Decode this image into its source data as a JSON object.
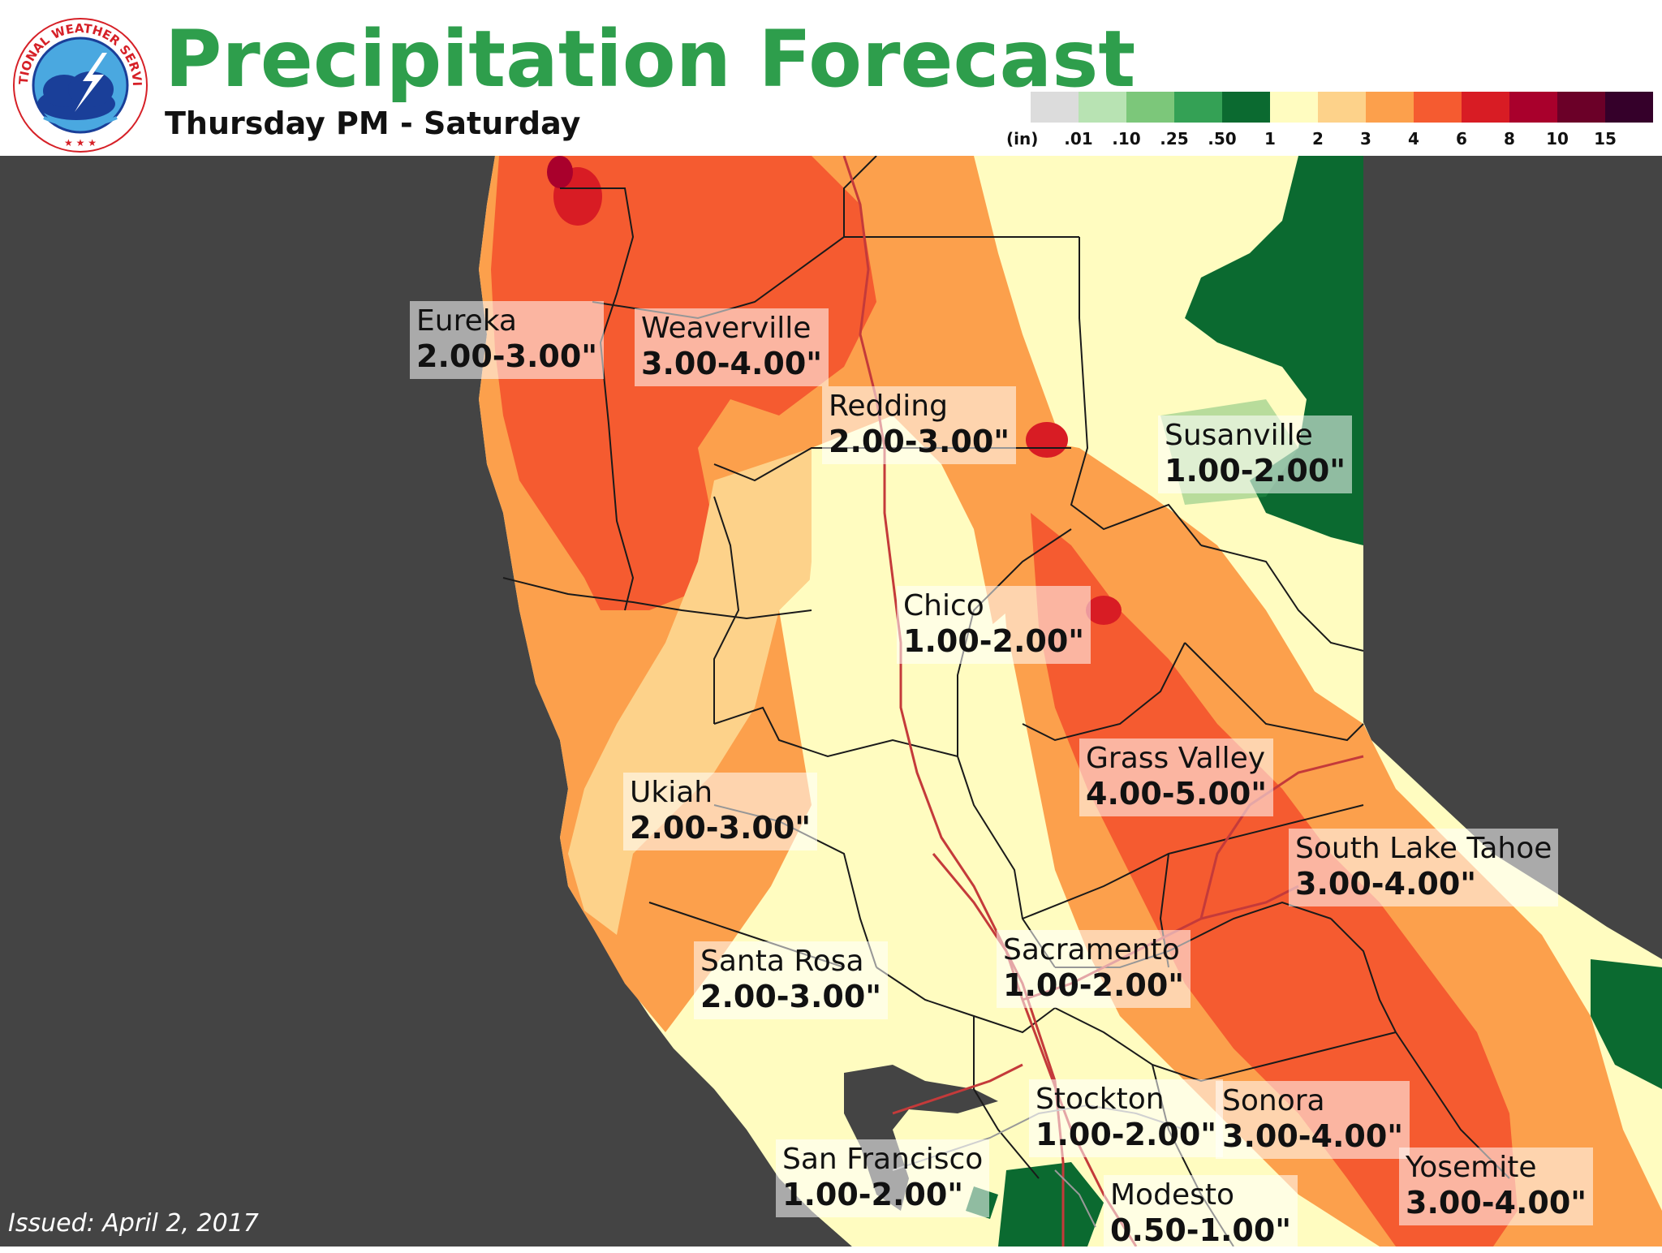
{
  "header": {
    "title": "Precipitation Forecast",
    "subtitle": "Thursday PM - Saturday"
  },
  "logo": {
    "text": "NATIONAL WEATHER SERVICE",
    "colors": {
      "ring_text": "#d62027",
      "cloud": "#1a3f99",
      "sky": "#4aa8e0"
    }
  },
  "legend": {
    "unit": "(in)",
    "bins": [
      {
        "color": "#dcdcdc",
        "label": ""
      },
      {
        "color": "#b8e3b3",
        "label": ".01"
      },
      {
        "color": "#7cc77a",
        "label": ".10"
      },
      {
        "color": "#34a155",
        "label": ".25"
      },
      {
        "color": "#0b6a30",
        "label": ".50"
      },
      {
        "color": "#fffcc0",
        "label": "1"
      },
      {
        "color": "#fdd28a",
        "label": "2"
      },
      {
        "color": "#fca04c",
        "label": "3"
      },
      {
        "color": "#f55b30",
        "label": "4"
      },
      {
        "color": "#d81c24",
        "label": "6"
      },
      {
        "color": "#a9002c",
        "label": "8"
      },
      {
        "color": "#6b0028",
        "label": "10"
      },
      {
        "color": "#35002a",
        "label": "15"
      }
    ]
  },
  "cities": [
    {
      "name": "Eureka",
      "value": "2.00-3.00\""
    },
    {
      "name": "Weaverville",
      "value": "3.00-4.00\""
    },
    {
      "name": "Redding",
      "value": "2.00-3.00\""
    },
    {
      "name": "Susanville",
      "value": "1.00-2.00\""
    },
    {
      "name": "Chico",
      "value": "1.00-2.00\""
    },
    {
      "name": "Grass Valley",
      "value": "4.00-5.00\""
    },
    {
      "name": "Ukiah",
      "value": "2.00-3.00\""
    },
    {
      "name": "South Lake Tahoe",
      "value": "3.00-4.00\""
    },
    {
      "name": "Santa Rosa",
      "value": "2.00-3.00\""
    },
    {
      "name": "Sacramento",
      "value": "1.00-2.00\""
    },
    {
      "name": "Stockton",
      "value": "1.00-2.00\""
    },
    {
      "name": "Sonora",
      "value": "3.00-4.00\""
    },
    {
      "name": "San Francisco",
      "value": "1.00-2.00\""
    },
    {
      "name": "Modesto",
      "value": "0.50-1.00\""
    },
    {
      "name": "Yosemite",
      "value": "3.00-4.00\""
    }
  ],
  "issued": "Issued: April 2, 2017",
  "map_colors": {
    "ocean": "#444444",
    "outside": "#444444",
    "county_line": "#1a1a1a",
    "highway": "#c43a3a",
    "light_yellow": "#fffcc0",
    "light_orange": "#fdd28a",
    "orange": "#fca04c",
    "red_orange": "#f55b30",
    "red": "#d81c24",
    "dark_green": "#0b6a30",
    "mid_green": "#34a155"
  }
}
